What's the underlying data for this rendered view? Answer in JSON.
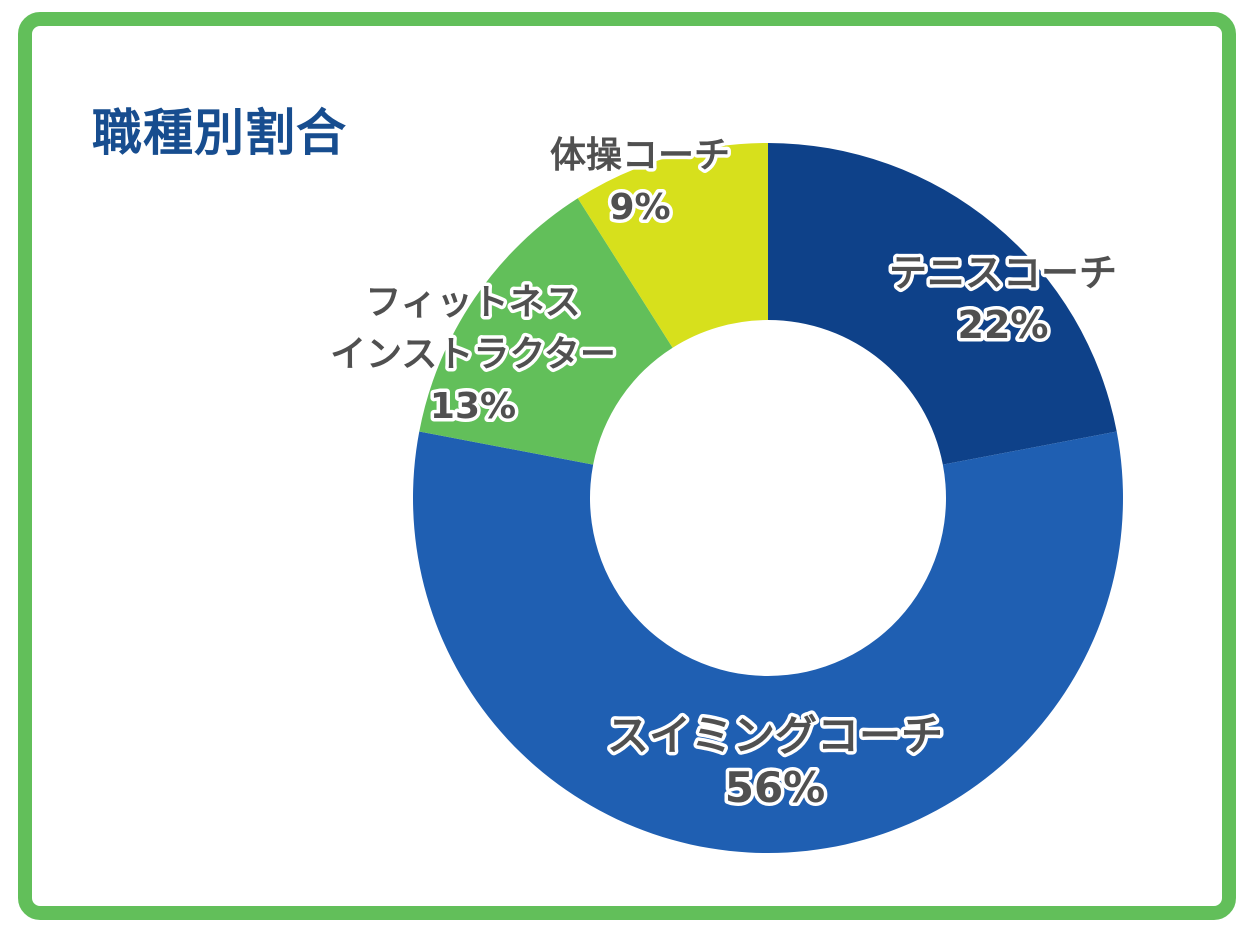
{
  "chart_data": {
    "type": "pie",
    "title": "職種別割合",
    "donut": true,
    "slices": [
      {
        "label_lines": [
          "テニスコーチ"
        ],
        "percent_label": "22%",
        "value": 22,
        "color": "#0e4189"
      },
      {
        "label_lines": [
          "スイミングコーチ"
        ],
        "percent_label": "56%",
        "value": 56,
        "color": "#1f5fb2"
      },
      {
        "label_lines": [
          "フィットネス",
          "インストラクター"
        ],
        "percent_label": "13%",
        "value": 13,
        "color": "#62bf5a"
      },
      {
        "label_lines": [
          "体操コーチ"
        ],
        "percent_label": "9%",
        "value": 9,
        "color": "#d7e01c"
      }
    ]
  }
}
